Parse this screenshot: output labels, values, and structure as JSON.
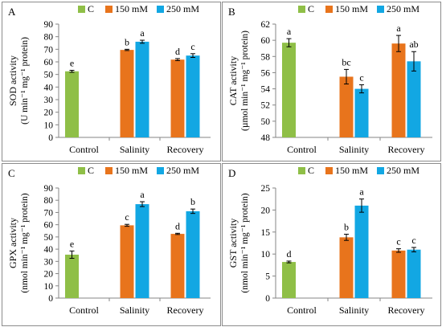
{
  "chart_data": [
    {
      "type": "bar",
      "panel_label": "A",
      "categories": [
        "Control",
        "Salinity",
        "Recovery"
      ],
      "legend": [
        "C",
        "150 mM",
        "250 mM"
      ],
      "ylabel_line1": "SOD activity",
      "ylabel_line2": "(U min⁻¹ mg⁻¹ protein)",
      "ylim": [
        0,
        90
      ],
      "yticks": [
        0,
        10,
        20,
        30,
        40,
        50,
        60,
        70,
        80,
        90
      ],
      "series": [
        {
          "name": "C",
          "values": [
            52.5,
            null,
            null
          ],
          "errors": [
            0.8,
            null,
            null
          ],
          "letters": [
            "e",
            null,
            null
          ]
        },
        {
          "name": "150 mM",
          "values": [
            null,
            69.5,
            61.8
          ],
          "errors": [
            null,
            0.5,
            0.8
          ],
          "letters": [
            null,
            "b",
            "d"
          ]
        },
        {
          "name": "250 mM",
          "values": [
            null,
            76.0,
            65.0
          ],
          "errors": [
            null,
            1.2,
            1.5
          ],
          "letters": [
            null,
            "a",
            "c"
          ]
        }
      ]
    },
    {
      "type": "bar",
      "panel_label": "B",
      "categories": [
        "Control",
        "Salinity",
        "Recovery"
      ],
      "legend": [
        "C",
        "150 mM",
        "250 mM"
      ],
      "ylabel_line1": "CAT activity",
      "ylabel_line2": "(µmol min⁻¹ mg⁻¹ protein)",
      "ylim": [
        48,
        62
      ],
      "yticks": [
        48,
        50,
        52,
        54,
        56,
        58,
        60,
        62
      ],
      "series": [
        {
          "name": "C",
          "values": [
            59.7,
            null,
            null
          ],
          "errors": [
            0.5,
            null,
            null
          ],
          "letters": [
            "a",
            null,
            null
          ]
        },
        {
          "name": "150 mM",
          "values": [
            null,
            55.5,
            59.6
          ],
          "errors": [
            null,
            0.9,
            1.0
          ],
          "letters": [
            null,
            "bc",
            "a"
          ]
        },
        {
          "name": "250 mM",
          "values": [
            null,
            54.0,
            57.4
          ],
          "errors": [
            null,
            0.5,
            1.2
          ],
          "letters": [
            null,
            "c",
            "ab"
          ]
        }
      ]
    },
    {
      "type": "bar",
      "panel_label": "C",
      "categories": [
        "Control",
        "Salinity",
        "Recovery"
      ],
      "legend": [
        "C",
        "150 mM",
        "250 mM"
      ],
      "ylabel_line1": "GPX activity",
      "ylabel_line2": "(nmol min⁻¹ mg⁻¹ protein)",
      "ylim": [
        0,
        90
      ],
      "yticks": [
        0,
        10,
        20,
        30,
        40,
        50,
        60,
        70,
        80,
        90
      ],
      "series": [
        {
          "name": "C",
          "values": [
            35.5,
            null,
            null
          ],
          "errors": [
            3.0,
            null,
            null
          ],
          "letters": [
            "e",
            null,
            null
          ]
        },
        {
          "name": "150 mM",
          "values": [
            null,
            59.5,
            52.5
          ],
          "errors": [
            null,
            0.8,
            0.5
          ],
          "letters": [
            null,
            "c",
            "d"
          ]
        },
        {
          "name": "250 mM",
          "values": [
            null,
            76.8,
            71.0
          ],
          "errors": [
            null,
            2.0,
            1.8
          ],
          "letters": [
            null,
            "a",
            "b"
          ]
        }
      ]
    },
    {
      "type": "bar",
      "panel_label": "D",
      "categories": [
        "Control",
        "Salinity",
        "Recovery"
      ],
      "legend": [
        "C",
        "150 mM",
        "250 mM"
      ],
      "ylabel_line1": "GST activity",
      "ylabel_line2": "(nmol min⁻¹ mg⁻¹ protein)",
      "ylim": [
        0,
        25
      ],
      "yticks": [
        0,
        5,
        10,
        15,
        20,
        25
      ],
      "series": [
        {
          "name": "C",
          "values": [
            8.2,
            null,
            null
          ],
          "errors": [
            0.2,
            null,
            null
          ],
          "letters": [
            "d",
            null,
            null
          ]
        },
        {
          "name": "150 mM",
          "values": [
            null,
            13.8,
            10.8
          ],
          "errors": [
            null,
            0.7,
            0.4
          ],
          "letters": [
            null,
            "b",
            "c"
          ]
        },
        {
          "name": "250 mM",
          "values": [
            null,
            21.0,
            11.0
          ],
          "errors": [
            null,
            1.5,
            0.5
          ],
          "letters": [
            null,
            "a",
            "c"
          ]
        }
      ]
    }
  ],
  "colors": {
    "C": "#8fbf47",
    "150 mM": "#e8741c",
    "250 mM": "#12a7e3",
    "axis": "#868686",
    "frame": "#8c8c8c"
  }
}
